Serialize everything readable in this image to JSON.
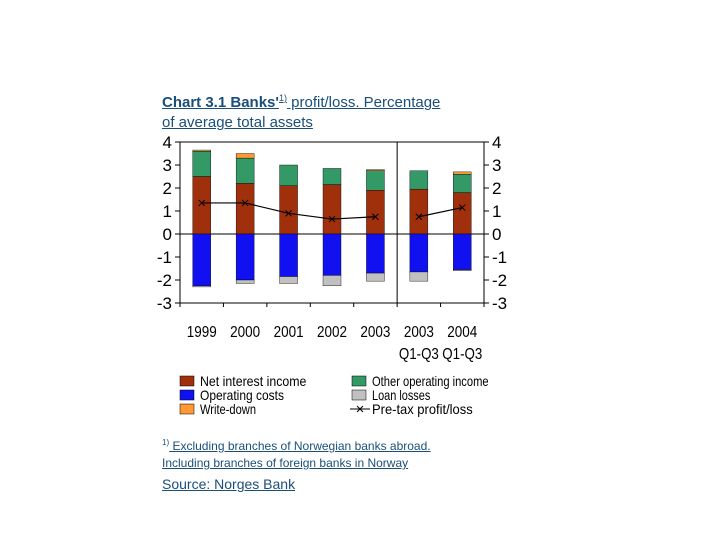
{
  "title": {
    "prefix": "Chart 3.1 Banks'",
    "sup": "1)",
    "line1_rest": " profit/loss. Percentage",
    "line2": "of average total assets"
  },
  "footnote": {
    "marker": "1)",
    "line1": " Excluding branches of Norwegian banks abroad.",
    "line2": "Including branches of foreign banks in Norway"
  },
  "source": "Source: Norges Bank",
  "colors": {
    "net_interest": "#a0300c",
    "other_income": "#339966",
    "operating_costs": "#1010f0",
    "loan_losses": "#c0c0c0",
    "write_down": "#ff9933",
    "pretax": "#000000"
  },
  "chart_data": {
    "type": "bar",
    "stacked": true,
    "categories": [
      [
        "1999"
      ],
      [
        "2000"
      ],
      [
        "2001"
      ],
      [
        "2002"
      ],
      [
        "2003"
      ],
      [
        "2003",
        "Q1-Q3"
      ],
      [
        "2004",
        "Q1-Q3"
      ]
    ],
    "ylim": [
      -3,
      4
    ],
    "yticks": [
      "4",
      "3",
      "2",
      "1",
      "0",
      "-1",
      "-2",
      "-3"
    ],
    "ytick_values": [
      4,
      3,
      2,
      1,
      0,
      -1,
      -2,
      -3
    ],
    "series": [
      {
        "name": "Net interest income",
        "key": "net_interest",
        "values": [
          2.5,
          2.2,
          2.1,
          2.15,
          1.9,
          1.95,
          1.8
        ]
      },
      {
        "name": "Other operating income",
        "key": "other_income",
        "values": [
          1.1,
          1.1,
          0.9,
          0.7,
          0.85,
          0.8,
          0.8
        ]
      },
      {
        "name": "Write-down",
        "key": "write_down",
        "values": [
          0.05,
          0.2,
          0,
          0,
          0.05,
          0,
          0.1
        ]
      },
      {
        "name": "Operating costs",
        "key": "operating_costs",
        "values": [
          -2.25,
          -2.0,
          -1.85,
          -1.8,
          -1.7,
          -1.65,
          -1.55
        ]
      },
      {
        "name": "Loan losses",
        "key": "loan_losses",
        "values": [
          -0.05,
          -0.15,
          -0.3,
          -0.45,
          -0.35,
          -0.4,
          -0.05
        ]
      }
    ],
    "line_series": {
      "name": "Pre-tax profit/loss",
      "key": "pretax",
      "values": [
        1.35,
        1.35,
        0.9,
        0.65,
        0.75,
        0.75,
        1.15
      ]
    },
    "line_breaks_after": [
      4
    ],
    "separator_after_index": 4,
    "legend": [
      {
        "label": "Net interest income",
        "key": "net_interest",
        "kind": "box"
      },
      {
        "label": "Other operating income",
        "key": "other_income",
        "kind": "box"
      },
      {
        "label": "Operating costs",
        "key": "operating_costs",
        "kind": "box"
      },
      {
        "label": "Loan losses",
        "key": "loan_losses",
        "kind": "box"
      },
      {
        "label": "Write-down",
        "key": "write_down",
        "kind": "box"
      },
      {
        "label": "Pre-tax profit/loss",
        "key": "pretax",
        "kind": "line"
      }
    ],
    "legend_position": "bottom"
  }
}
